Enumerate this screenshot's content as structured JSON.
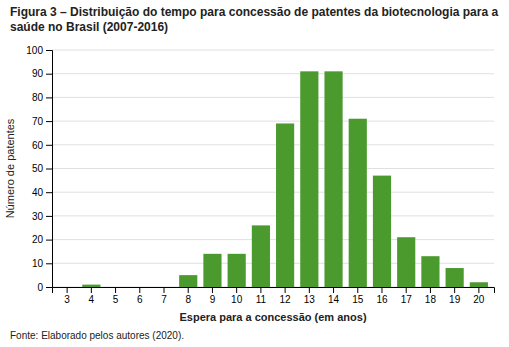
{
  "chart_data": {
    "type": "bar",
    "title": "Figura 3 – Distribuição do tempo para concessão de patentes da biotecnologia para a saúde no Brasil (2007-2016)",
    "x_label": "Espera para a concessão (em anos)",
    "y_label": "Número de patentes",
    "annotations": [
      "Fonte: Elaborado pelos autores (2020)."
    ],
    "categories": [
      3,
      4,
      5,
      6,
      7,
      8,
      9,
      10,
      11,
      12,
      13,
      14,
      15,
      16,
      17,
      18,
      19,
      20
    ],
    "values": [
      0,
      1,
      0,
      0,
      0,
      5,
      14,
      14,
      26,
      69,
      91,
      91,
      71,
      47,
      21,
      13,
      8,
      2
    ],
    "color": "#4a9a2e",
    "ylim": [
      0,
      100
    ],
    "yticks": [
      0,
      10,
      20,
      30,
      40,
      50,
      60,
      70,
      80,
      90,
      100
    ],
    "grid": true
  }
}
